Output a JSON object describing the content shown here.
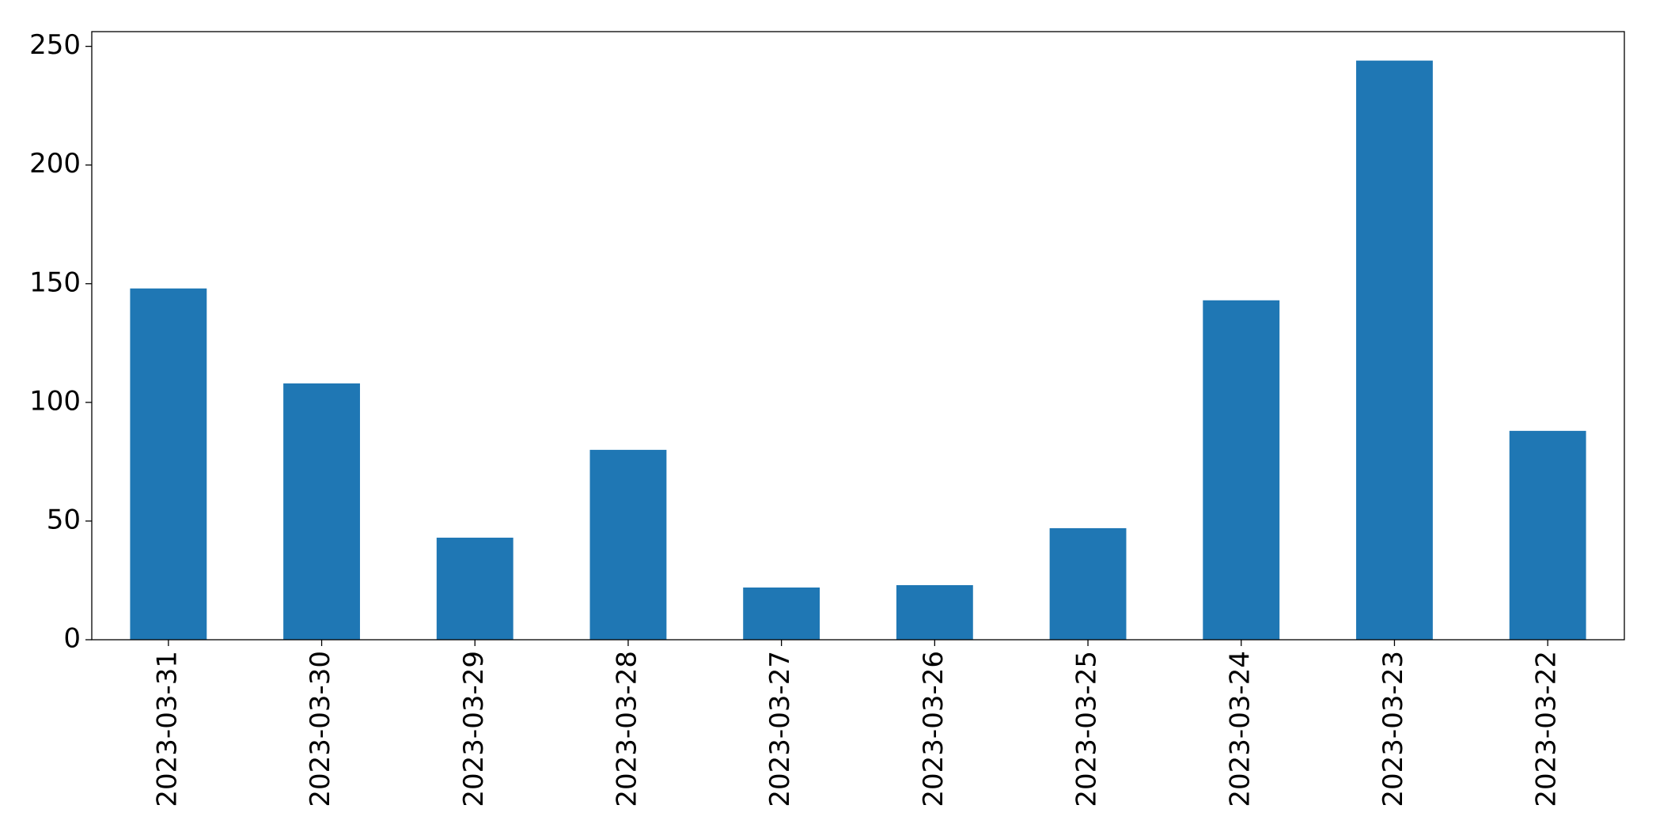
{
  "chart_data": {
    "type": "bar",
    "categories": [
      "2023-03-31",
      "2023-03-30",
      "2023-03-29",
      "2023-03-28",
      "2023-03-27",
      "2023-03-26",
      "2023-03-25",
      "2023-03-24",
      "2023-03-23",
      "2023-03-22"
    ],
    "values": [
      148,
      108,
      43,
      80,
      22,
      23,
      47,
      143,
      244,
      88
    ],
    "color": "#1f77b4",
    "ylim": [
      0,
      256.2
    ],
    "yticks": [
      0,
      50,
      100,
      150,
      200,
      250
    ],
    "grid": false
  }
}
